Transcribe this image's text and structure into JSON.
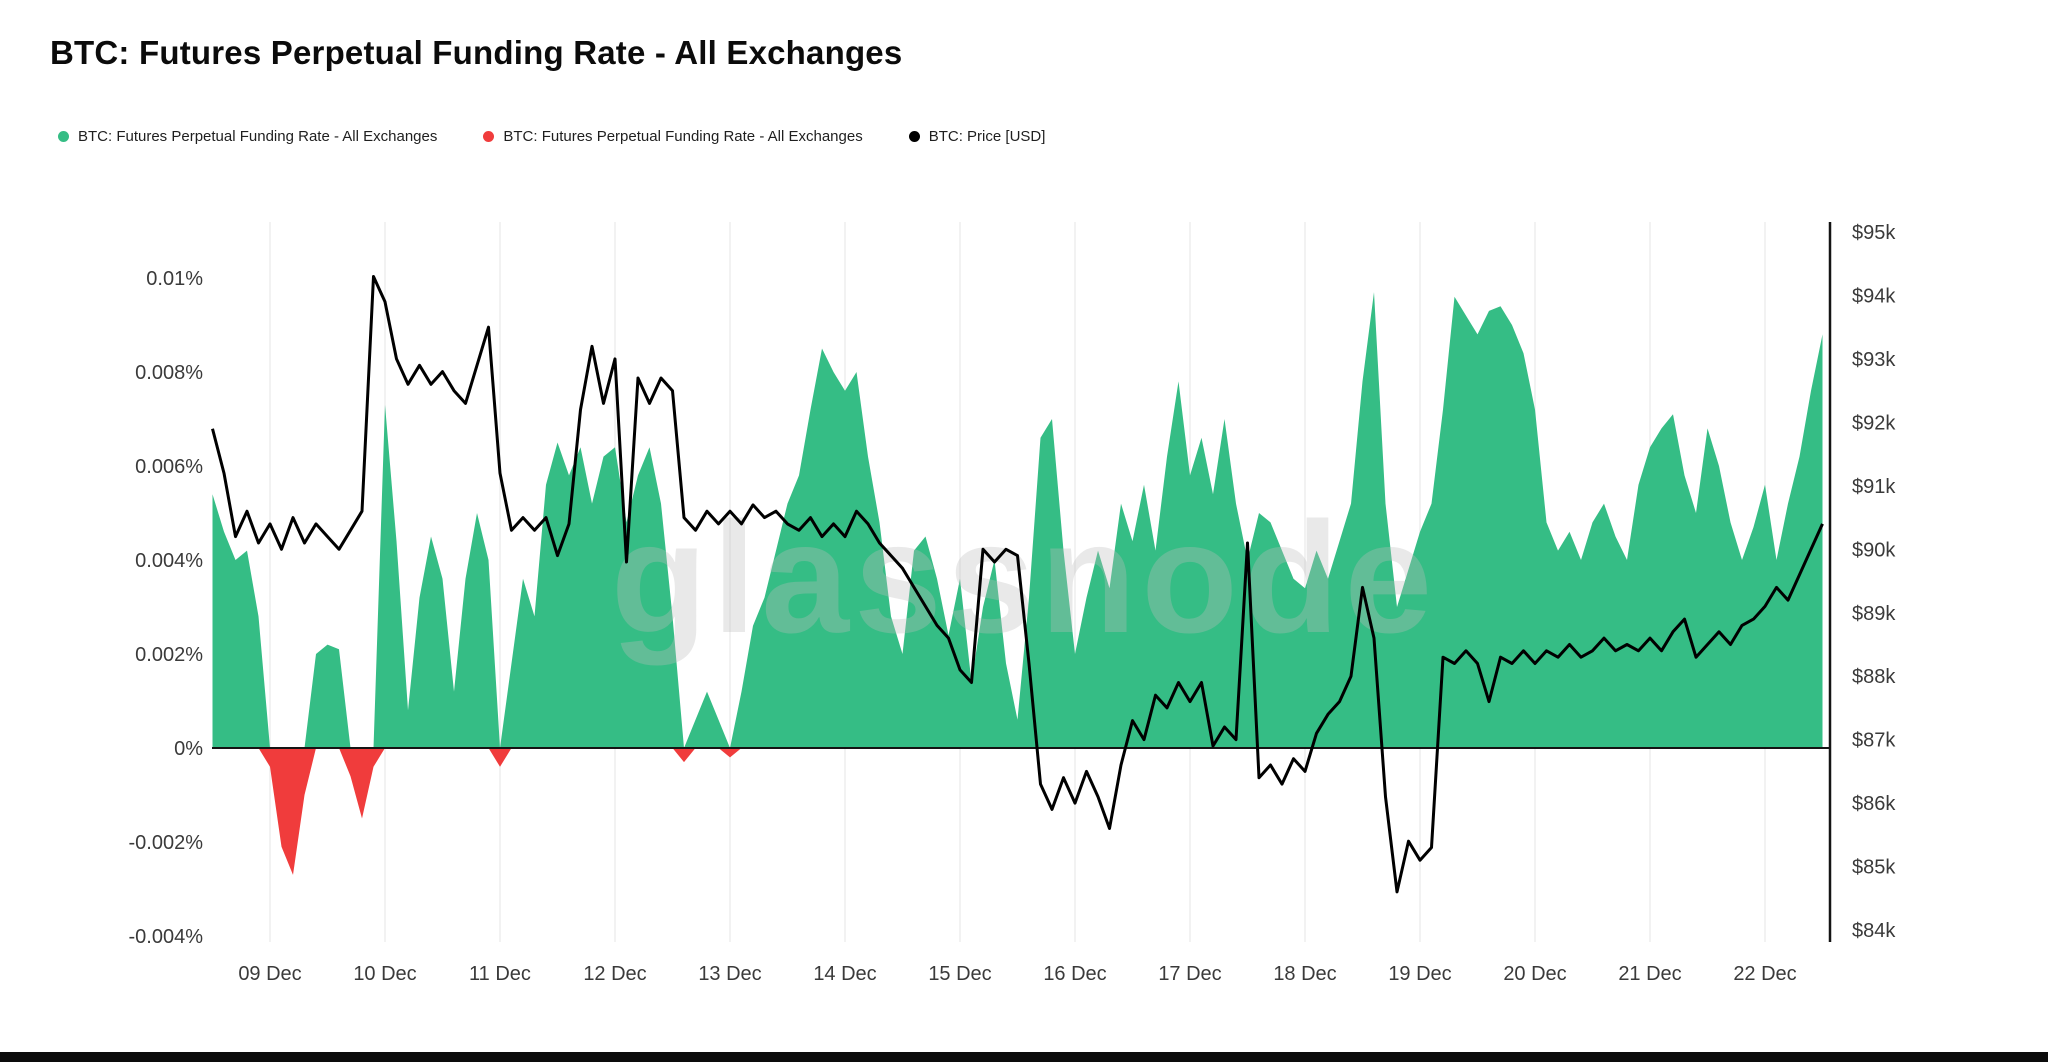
{
  "header": {
    "title": "BTC: Futures Perpetual Funding Rate - All Exchanges"
  },
  "legend": {
    "items": [
      {
        "label": "BTC: Futures Perpetual Funding Rate - All Exchanges",
        "color": "#35bd85"
      },
      {
        "label": "BTC: Futures Perpetual Funding Rate - All Exchanges",
        "color": "#f03c3c"
      },
      {
        "label": "BTC: Price [USD]",
        "color": "#000000"
      }
    ]
  },
  "watermark": {
    "text": "glassnode"
  },
  "colors": {
    "positive": "#35bd85",
    "negative": "#f03c3c",
    "price": "#000000",
    "axis_text": "#3a3a3a",
    "grid": "#f2f2f2",
    "baseline": "#141414",
    "background": "#ffffff"
  },
  "chart_data": {
    "type": "area",
    "title": "BTC: Futures Perpetual Funding Rate - All Exchanges",
    "legend_position": "top-left",
    "grid": "faint-vertical",
    "series": [
      {
        "name": "BTC: Futures Perpetual Funding Rate - All Exchanges (positive)",
        "type": "area",
        "axis": "left",
        "unit": "%",
        "color": "#35bd85"
      },
      {
        "name": "BTC: Futures Perpetual Funding Rate - All Exchanges (negative)",
        "type": "area",
        "axis": "left",
        "unit": "%",
        "color": "#f03c3c"
      },
      {
        "name": "BTC: Price [USD]",
        "type": "line",
        "axis": "right",
        "unit": "USD thousands",
        "color": "#000000"
      }
    ],
    "x_start_day": 8.5,
    "x_step_day": 0.1,
    "x_ticks": [
      {
        "day": 9,
        "label": "09 Dec"
      },
      {
        "day": 10,
        "label": "10 Dec"
      },
      {
        "day": 11,
        "label": "11 Dec"
      },
      {
        "day": 12,
        "label": "12 Dec"
      },
      {
        "day": 13,
        "label": "13 Dec"
      },
      {
        "day": 14,
        "label": "14 Dec"
      },
      {
        "day": 15,
        "label": "15 Dec"
      },
      {
        "day": 16,
        "label": "16 Dec"
      },
      {
        "day": 17,
        "label": "17 Dec"
      },
      {
        "day": 18,
        "label": "18 Dec"
      },
      {
        "day": 19,
        "label": "19 Dec"
      },
      {
        "day": 20,
        "label": "20 Dec"
      },
      {
        "day": 21,
        "label": "21 Dec"
      },
      {
        "day": 22,
        "label": "22 Dec"
      }
    ],
    "left_axis": {
      "title": "funding rate",
      "min": -0.0046,
      "max": 0.0112,
      "ticks": [
        {
          "v": 0.01,
          "label": "0.01%"
        },
        {
          "v": 0.008,
          "label": "0.008%"
        },
        {
          "v": 0.006,
          "label": "0.006%"
        },
        {
          "v": 0.004,
          "label": "0.004%"
        },
        {
          "v": 0.002,
          "label": "0.002%"
        },
        {
          "v": 0,
          "label": "0%"
        },
        {
          "v": -0.002,
          "label": "-0.002%"
        },
        {
          "v": -0.004,
          "label": "-0.004%"
        }
      ]
    },
    "right_axis": {
      "title": "BTC price",
      "min": 83.8,
      "max": 95.2,
      "ticks": [
        {
          "v": 95,
          "label": "$95k"
        },
        {
          "v": 94,
          "label": "$94k"
        },
        {
          "v": 93,
          "label": "$93k"
        },
        {
          "v": 92,
          "label": "$92k"
        },
        {
          "v": 91,
          "label": "$91k"
        },
        {
          "v": 90,
          "label": "$90k"
        },
        {
          "v": 89,
          "label": "$89k"
        },
        {
          "v": 88,
          "label": "$88k"
        },
        {
          "v": 87,
          "label": "$87k"
        },
        {
          "v": 86,
          "label": "$86k"
        },
        {
          "v": 85,
          "label": "$85k"
        },
        {
          "v": 84,
          "label": "$84k"
        }
      ]
    },
    "funding_rate_pct": [
      0.0054,
      0.0046,
      0.004,
      0.0042,
      0.0028,
      -0.0004,
      -0.0021,
      -0.0027,
      -0.001,
      0.002,
      0.0022,
      0.0021,
      -0.0006,
      -0.0015,
      -0.0004,
      0.0073,
      0.0044,
      0.0008,
      0.0032,
      0.0045,
      0.0036,
      0.0012,
      0.0036,
      0.005,
      0.004,
      -0.0004,
      0.0018,
      0.0036,
      0.0028,
      0.0056,
      0.0065,
      0.0058,
      0.0064,
      0.0052,
      0.0062,
      0.0064,
      0.0048,
      0.0058,
      0.0064,
      0.0052,
      0.0028,
      -0.0003,
      0.0006,
      0.0012,
      0.0006,
      -0.0002,
      0.0012,
      0.0026,
      0.0032,
      0.0042,
      0.0052,
      0.0058,
      0.0072,
      0.0085,
      0.008,
      0.0076,
      0.008,
      0.0062,
      0.0048,
      0.0028,
      0.002,
      0.0042,
      0.0045,
      0.0036,
      0.0024,
      0.0036,
      0.0014,
      0.003,
      0.004,
      0.0018,
      0.0006,
      0.0032,
      0.0066,
      0.007,
      0.0042,
      0.002,
      0.0032,
      0.0042,
      0.0034,
      0.0052,
      0.0044,
      0.0056,
      0.0042,
      0.0062,
      0.0078,
      0.0058,
      0.0066,
      0.0054,
      0.007,
      0.0052,
      0.004,
      0.005,
      0.0048,
      0.0042,
      0.0036,
      0.0034,
      0.0042,
      0.0036,
      0.0044,
      0.0052,
      0.0078,
      0.0097,
      0.0052,
      0.003,
      0.0038,
      0.0046,
      0.0052,
      0.0072,
      0.0096,
      0.0092,
      0.0088,
      0.0093,
      0.0094,
      0.009,
      0.0084,
      0.0072,
      0.0048,
      0.0042,
      0.0046,
      0.004,
      0.0048,
      0.0052,
      0.0045,
      0.004,
      0.0056,
      0.0064,
      0.0068,
      0.0071,
      0.0058,
      0.005,
      0.0068,
      0.006,
      0.0048,
      0.004,
      0.0047,
      0.0056,
      0.004,
      0.0052,
      0.0062,
      0.0076,
      0.0088
    ],
    "price_usd_k": [
      91.9,
      91.2,
      90.2,
      90.6,
      90.1,
      90.4,
      90.0,
      90.5,
      90.1,
      90.4,
      90.2,
      90.0,
      90.3,
      90.6,
      94.3,
      93.9,
      93.0,
      92.6,
      92.9,
      92.6,
      92.8,
      92.5,
      92.3,
      92.9,
      93.5,
      91.2,
      90.3,
      90.5,
      90.3,
      90.5,
      89.9,
      90.4,
      92.2,
      93.2,
      92.3,
      93.0,
      89.8,
      92.7,
      92.3,
      92.7,
      92.5,
      90.5,
      90.3,
      90.6,
      90.4,
      90.6,
      90.4,
      90.7,
      90.5,
      90.6,
      90.4,
      90.3,
      90.5,
      90.2,
      90.4,
      90.2,
      90.6,
      90.4,
      90.1,
      89.9,
      89.7,
      89.4,
      89.1,
      88.8,
      88.6,
      88.1,
      87.9,
      90.0,
      89.8,
      90.0,
      89.9,
      88.2,
      86.3,
      85.9,
      86.4,
      86.0,
      86.5,
      86.1,
      85.6,
      86.6,
      87.3,
      87.0,
      87.7,
      87.5,
      87.9,
      87.6,
      87.9,
      86.9,
      87.2,
      87.0,
      90.1,
      86.4,
      86.6,
      86.3,
      86.7,
      86.5,
      87.1,
      87.4,
      87.6,
      88.0,
      89.4,
      88.6,
      86.1,
      84.6,
      85.4,
      85.1,
      85.3,
      88.3,
      88.2,
      88.4,
      88.2,
      87.6,
      88.3,
      88.2,
      88.4,
      88.2,
      88.4,
      88.3,
      88.5,
      88.3,
      88.4,
      88.6,
      88.4,
      88.5,
      88.4,
      88.6,
      88.4,
      88.7,
      88.9,
      88.3,
      88.5,
      88.7,
      88.5,
      88.8,
      88.9,
      89.1,
      89.4,
      89.2,
      89.6,
      90.0,
      90.4
    ]
  }
}
